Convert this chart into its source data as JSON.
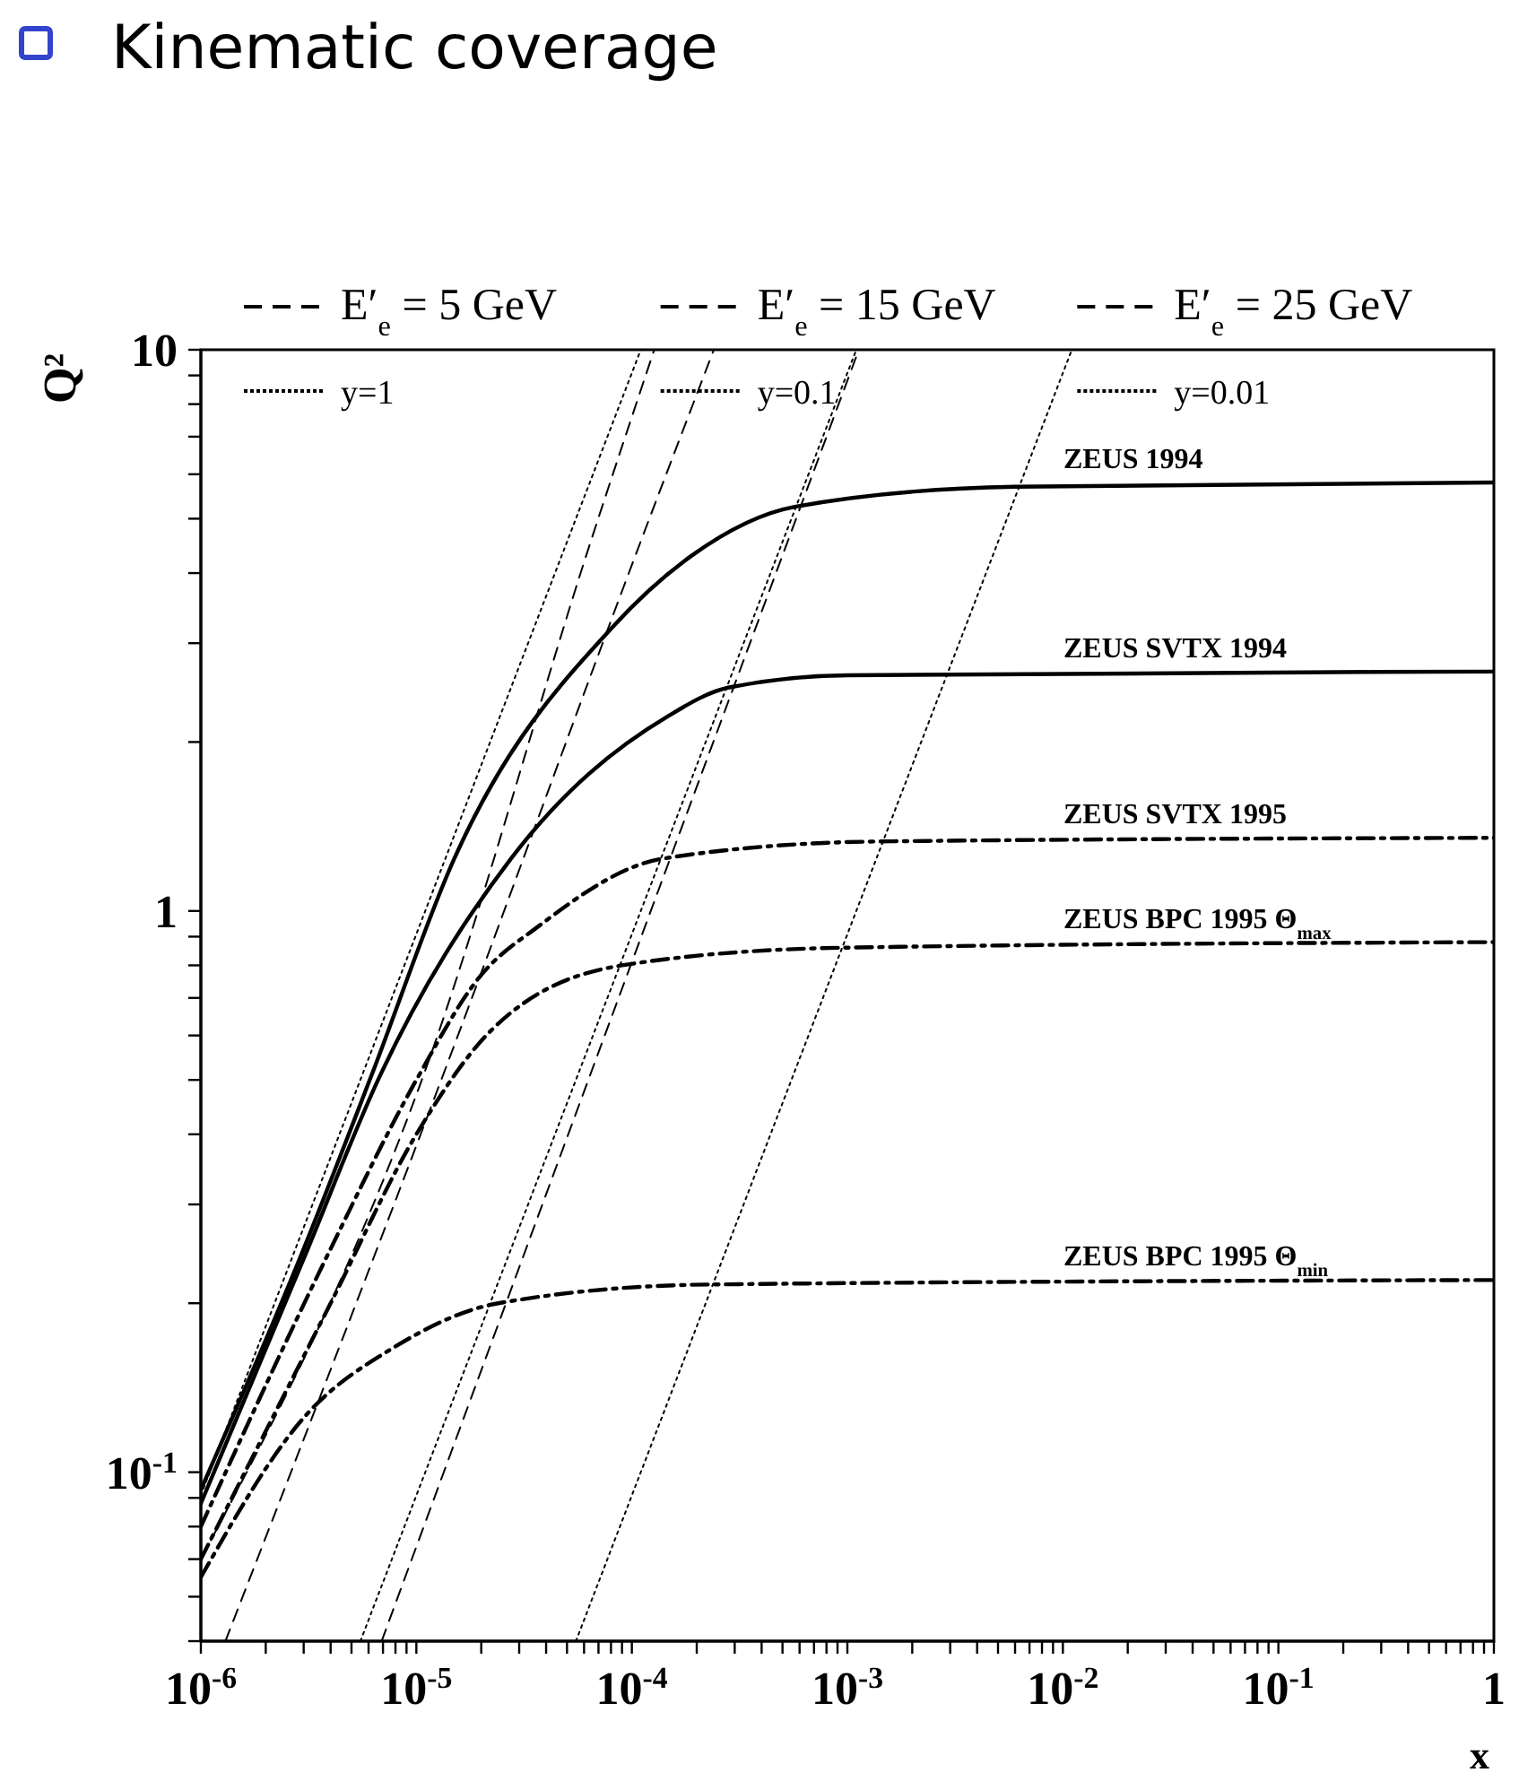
{
  "chart_data": {
    "type": "line",
    "title": "Kinematic coverage",
    "xlabel": "x",
    "ylabel": "Q²",
    "log": "xy",
    "legend": "top",
    "xlim": [
      1e-06,
      1
    ],
    "ylim": [
      0.05,
      10
    ],
    "xticks": [
      {
        "value": 1e-06,
        "label": "10$^{-6}$"
      },
      {
        "value": 2e-06,
        "label": null
      },
      {
        "value": 3e-06,
        "label": null
      },
      {
        "value": 4e-06,
        "label": null
      },
      {
        "value": 5e-06,
        "label": null
      },
      {
        "value": 6e-06,
        "label": null
      },
      {
        "value": 7e-06,
        "label": null
      },
      {
        "value": 8e-06,
        "label": null
      },
      {
        "value": 9e-06,
        "label": null
      },
      {
        "value": 1e-05,
        "label": "10$^{-5}$"
      },
      {
        "value": 2e-05,
        "label": null
      },
      {
        "value": 3e-05,
        "label": null
      },
      {
        "value": 4e-05,
        "label": null
      },
      {
        "value": 5e-05,
        "label": null
      },
      {
        "value": 6e-05,
        "label": null
      },
      {
        "value": 7e-05,
        "label": null
      },
      {
        "value": 8e-05,
        "label": null
      },
      {
        "value": 9e-05,
        "label": null
      },
      {
        "value": 0.0001,
        "label": "10$^{-4}$"
      },
      {
        "value": 0.0002,
        "label": null
      },
      {
        "value": 0.0003,
        "label": null
      },
      {
        "value": 0.0004,
        "label": null
      },
      {
        "value": 0.0005,
        "label": null
      },
      {
        "value": 0.0006,
        "label": null
      },
      {
        "value": 0.0007,
        "label": null
      },
      {
        "value": 0.0008,
        "label": null
      },
      {
        "value": 0.0009,
        "label": null
      },
      {
        "value": 0.001,
        "label": "10$^{-3}$"
      },
      {
        "value": 0.002,
        "label": null
      },
      {
        "value": 0.003,
        "label": null
      },
      {
        "value": 0.004,
        "label": null
      },
      {
        "value": 0.005,
        "label": null
      },
      {
        "value": 0.006,
        "label": null
      },
      {
        "value": 0.007,
        "label": null
      },
      {
        "value": 0.008,
        "label": null
      },
      {
        "value": 0.009,
        "label": null
      },
      {
        "value": 0.01,
        "label": "10$^{-2}$"
      },
      {
        "value": 0.02,
        "label": null
      },
      {
        "value": 0.03,
        "label": null
      },
      {
        "value": 0.04,
        "label": null
      },
      {
        "value": 0.05,
        "label": null
      },
      {
        "value": 0.06,
        "label": null
      },
      {
        "value": 0.07,
        "label": null
      },
      {
        "value": 0.08,
        "label": null
      },
      {
        "value": 0.09,
        "label": null
      },
      {
        "value": 0.1,
        "label": "10$^{-1}$"
      },
      {
        "value": 0.2,
        "label": null
      },
      {
        "value": 0.3,
        "label": null
      },
      {
        "value": 0.4,
        "label": null
      },
      {
        "value": 0.5,
        "label": null
      },
      {
        "value": 0.6,
        "label": null
      },
      {
        "value": 0.7,
        "label": null
      },
      {
        "value": 0.8,
        "label": null
      },
      {
        "value": 0.9,
        "label": null
      },
      {
        "value": 1,
        "label": "1"
      }
    ],
    "yticks": [
      {
        "value": 0.05,
        "label": null
      },
      {
        "value": 0.06,
        "label": null
      },
      {
        "value": 0.07,
        "label": null
      },
      {
        "value": 0.08,
        "label": null
      },
      {
        "value": 0.09,
        "label": null
      },
      {
        "value": 0.1,
        "label": "10$^{-1}$"
      },
      {
        "value": 0.2,
        "label": null
      },
      {
        "value": 0.3,
        "label": null
      },
      {
        "value": 0.4,
        "label": null
      },
      {
        "value": 0.5,
        "label": null
      },
      {
        "value": 0.6,
        "label": null
      },
      {
        "value": 0.7,
        "label": null
      },
      {
        "value": 0.8,
        "label": null
      },
      {
        "value": 0.9,
        "label": null
      },
      {
        "value": 1,
        "label": "1"
      },
      {
        "value": 2,
        "label": null
      },
      {
        "value": 3,
        "label": null
      },
      {
        "value": 4,
        "label": null
      },
      {
        "value": 5,
        "label": null
      },
      {
        "value": 6,
        "label": null
      },
      {
        "value": 7,
        "label": null
      },
      {
        "value": 8,
        "label": null
      },
      {
        "value": 9,
        "label": null
      },
      {
        "value": 10,
        "label": "10"
      }
    ],
    "series": [
      {
        "name": "ZEUS 1994",
        "color": "#000000",
        "line_style": "solid",
        "x": [
          1e-06,
          3e-06,
          6.2e-06,
          1.5e-05,
          8.1e-05,
          0.00019,
          0.00057,
          0.006,
          1
        ],
        "values": [
          0.093,
          0.25,
          0.51,
          1.24,
          3.2,
          4.3,
          5.25,
          5.7,
          5.8
        ]
      },
      {
        "name": "ZEUS SVTX 1994",
        "color": "#000000",
        "line_style": "solid",
        "x": [
          1e-06,
          3e-06,
          6.8e-06,
          2.75e-05,
          0.000146,
          0.00028,
          0.001,
          1
        ],
        "values": [
          0.088,
          0.24,
          0.51,
          1.24,
          2.22,
          2.5,
          2.63,
          2.67
        ]
      },
      {
        "name": "ZEUS SVTX 1995",
        "color": "#000000",
        "line_style": "dashdot",
        "x": [
          1e-06,
          4e-06,
          1e-05,
          1.95e-05,
          3.7e-05,
          0.00014,
          0.0014,
          1
        ],
        "values": [
          0.08,
          0.25,
          0.5,
          0.76,
          0.94,
          1.24,
          1.33,
          1.35
        ]
      },
      {
        "name": "ZEUS BPC 1995 Θ$_{max}$",
        "color": "#000000",
        "line_style": "dashdot",
        "x": [
          1e-06,
          4e-06,
          1e-05,
          2.2e-05,
          9e-05,
          0.00095,
          1
        ],
        "values": [
          0.07,
          0.2,
          0.4,
          0.61,
          0.8,
          0.86,
          0.88
        ]
      },
      {
        "name": "ZEUS BPC 1995 Θ$_{min}$",
        "color": "#000000",
        "line_style": "dashdot",
        "x": [
          1e-06,
          3e-06,
          7.9e-06,
          2.4e-05,
          0.00023,
          1
        ],
        "values": [
          0.065,
          0.125,
          0.167,
          0.2,
          0.216,
          0.22
        ]
      },
      {
        "name": "E′$_{e}$ = 5 GeV",
        "color": "#000000",
        "line_style": "dashed",
        "x": [
          1e-06,
          1.08e-05,
          6.5e-05,
          0.000127
        ],
        "values": [
          0.07,
          0.51,
          4.6,
          10
        ]
      },
      {
        "name": "E′$_{e}$ = 15 GeV",
        "color": "#000000",
        "line_style": "dashed",
        "x": [
          1.3e-06,
          1.33e-05,
          0.000111,
          0.00024
        ],
        "values": [
          0.05,
          0.51,
          4.6,
          10
        ]
      },
      {
        "name": "E′$_{e}$ = 25 GeV",
        "color": "#000000",
        "line_style": "dashed",
        "x": [
          6.9e-06,
          6.4e-05,
          0.00113
        ],
        "values": [
          0.05,
          0.51,
          10
        ]
      },
      {
        "name": "y=1",
        "color": "#000000",
        "line_style": "dotted",
        "x": [
          1e-06,
          0.00011
        ],
        "values": [
          0.091,
          10
        ]
      },
      {
        "name": "y=0.1",
        "color": "#000000",
        "line_style": "dotted",
        "x": [
          5.5e-06,
          0.0011
        ],
        "values": [
          0.05,
          10
        ]
      },
      {
        "name": "y=0.01",
        "color": "#000000",
        "line_style": "dotted",
        "x": [
          5.5e-05,
          0.011
        ],
        "values": [
          0.05,
          10
        ]
      }
    ]
  }
}
